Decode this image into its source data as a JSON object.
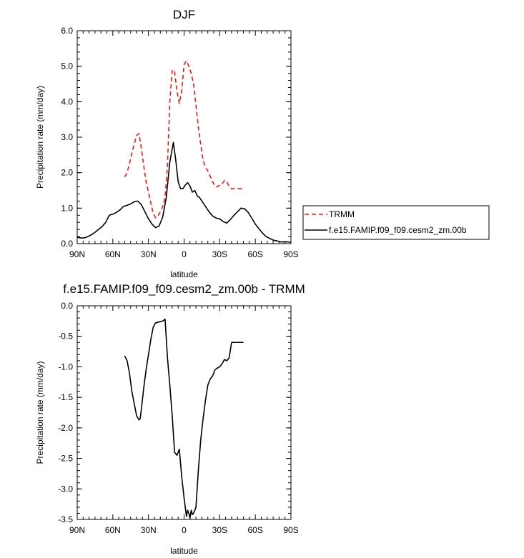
{
  "colors": {
    "trmm": "#e0201a",
    "model": "#000000",
    "axis": "#000000"
  },
  "chart_data": [
    {
      "type": "line",
      "title": "DJF",
      "xlabel": "latitude",
      "ylabel": "Precipitation rate (mm/day)",
      "xlim": [
        -90,
        90
      ],
      "ylim": [
        0,
        6
      ],
      "x_direction": "north-to-south",
      "xticks": [
        -90,
        -60,
        -30,
        0,
        30,
        60,
        90
      ],
      "xtick_labels": [
        "90N",
        "60N",
        "30N",
        "0",
        "30S",
        "60S",
        "90S"
      ],
      "yticks": [
        0,
        1,
        2,
        3,
        4,
        5,
        6
      ],
      "ytick_labels": [
        "0.0",
        "1.0",
        "2.0",
        "3.0",
        "4.0",
        "5.0",
        "6.0"
      ],
      "legend": {
        "position": "right-outside",
        "entries": [
          "TRMM",
          "f.e15.FAMIP.f09_f09.cesm2_zm.00b"
        ]
      },
      "series": [
        {
          "name": "TRMM",
          "style": "dashed",
          "color": "#e0201a",
          "x": [
            -50,
            -48,
            -46,
            -44,
            -42,
            -40,
            -38,
            -36,
            -34,
            -32,
            -30,
            -28,
            -26,
            -24,
            -22,
            -20,
            -18,
            -16,
            -14,
            -12,
            -10,
            -8,
            -6,
            -4,
            -2,
            0,
            2,
            4,
            6,
            8,
            10,
            12,
            14,
            16,
            18,
            20,
            22,
            24,
            26,
            28,
            30,
            32,
            34,
            36,
            38,
            40,
            42,
            44,
            46,
            48,
            50
          ],
          "y": [
            1.88,
            2.0,
            2.25,
            2.55,
            2.8,
            3.05,
            3.1,
            2.7,
            2.2,
            1.75,
            1.45,
            1.15,
            0.85,
            0.73,
            0.78,
            0.9,
            1.05,
            1.3,
            2.2,
            4.0,
            4.9,
            4.85,
            4.3,
            3.95,
            4.3,
            5.05,
            5.15,
            5.0,
            4.8,
            4.5,
            3.9,
            3.3,
            2.8,
            2.35,
            2.15,
            2.05,
            1.9,
            1.75,
            1.62,
            1.6,
            1.65,
            1.68,
            1.78,
            1.75,
            1.6,
            1.55,
            1.55,
            1.55,
            1.55,
            1.55,
            1.55
          ]
        },
        {
          "name": "f.e15.FAMIP.f09_f09.cesm2_zm.00b",
          "style": "solid",
          "color": "#000000",
          "x": [
            -90,
            -87,
            -84,
            -81,
            -78,
            -75,
            -72,
            -69,
            -66,
            -63,
            -60,
            -57,
            -54,
            -51,
            -48,
            -45,
            -42,
            -39,
            -36,
            -33,
            -30,
            -27,
            -24,
            -21,
            -18,
            -15,
            -12,
            -9,
            -7,
            -5,
            -3,
            -1,
            1,
            3,
            5,
            7,
            9,
            11,
            13,
            15,
            18,
            21,
            24,
            27,
            30,
            33,
            36,
            39,
            42,
            45,
            48,
            51,
            54,
            57,
            60,
            63,
            66,
            69,
            72,
            75,
            78,
            81,
            84,
            87,
            90
          ],
          "y": [
            0.18,
            0.16,
            0.16,
            0.2,
            0.25,
            0.32,
            0.4,
            0.48,
            0.6,
            0.8,
            0.83,
            0.88,
            0.95,
            1.05,
            1.08,
            1.12,
            1.18,
            1.2,
            1.1,
            0.9,
            0.7,
            0.55,
            0.45,
            0.5,
            0.75,
            1.3,
            2.3,
            2.85,
            2.35,
            1.75,
            1.55,
            1.55,
            1.65,
            1.72,
            1.62,
            1.45,
            1.5,
            1.35,
            1.3,
            1.2,
            1.05,
            0.9,
            0.78,
            0.72,
            0.7,
            0.62,
            0.58,
            0.68,
            0.8,
            0.9,
            1.0,
            0.98,
            0.88,
            0.72,
            0.55,
            0.42,
            0.3,
            0.2,
            0.15,
            0.1,
            0.08,
            0.05,
            0.05,
            0.05,
            0.04
          ]
        }
      ]
    },
    {
      "type": "line",
      "title": "f.e15.FAMIP.f09_f09.cesm2_zm.00b - TRMM",
      "xlabel": "latitude",
      "ylabel": "Precipitation rate (mm/day)",
      "xlim": [
        -90,
        90
      ],
      "ylim": [
        -3.5,
        0
      ],
      "x_direction": "north-to-south",
      "xticks": [
        -90,
        -60,
        -30,
        0,
        30,
        60,
        90
      ],
      "xtick_labels": [
        "90N",
        "60N",
        "30N",
        "0",
        "30S",
        "60S",
        "90S"
      ],
      "yticks": [
        -3.5,
        -3.0,
        -2.5,
        -2.0,
        -1.5,
        -1.0,
        -0.5,
        0
      ],
      "ytick_labels": [
        "-3.5",
        "-3.0",
        "-2.5",
        "-2.0",
        "-1.5",
        "-1.0",
        "-0.5",
        "0.0"
      ],
      "series": [
        {
          "style": "solid",
          "color": "#000000",
          "x": [
            -50,
            -48,
            -46,
            -44,
            -42,
            -40,
            -38,
            -37,
            -36,
            -34,
            -32,
            -30,
            -28,
            -26,
            -24,
            -22,
            -20,
            -18,
            -16,
            -14,
            -12,
            -10,
            -8,
            -6,
            -4,
            -2,
            0,
            1,
            2,
            3,
            4,
            5,
            6,
            7,
            8,
            10,
            12,
            14,
            16,
            18,
            20,
            22,
            24,
            26,
            28,
            30,
            32,
            34,
            36,
            38,
            40,
            42,
            44,
            46,
            48,
            50
          ],
          "y": [
            -0.82,
            -0.9,
            -1.1,
            -1.4,
            -1.6,
            -1.8,
            -1.87,
            -1.85,
            -1.7,
            -1.35,
            -1.05,
            -0.8,
            -0.55,
            -0.35,
            -0.28,
            -0.27,
            -0.26,
            -0.25,
            -0.22,
            -0.85,
            -1.3,
            -1.8,
            -2.4,
            -2.45,
            -2.35,
            -2.8,
            -3.15,
            -3.3,
            -3.45,
            -3.35,
            -3.4,
            -3.48,
            -3.35,
            -3.42,
            -3.4,
            -3.3,
            -2.7,
            -2.2,
            -1.85,
            -1.55,
            -1.3,
            -1.2,
            -1.15,
            -1.05,
            -1.02,
            -1.0,
            -0.95,
            -0.88,
            -0.9,
            -0.85,
            -0.6,
            -0.6,
            -0.6,
            -0.6,
            -0.6,
            -0.6
          ]
        }
      ]
    }
  ]
}
